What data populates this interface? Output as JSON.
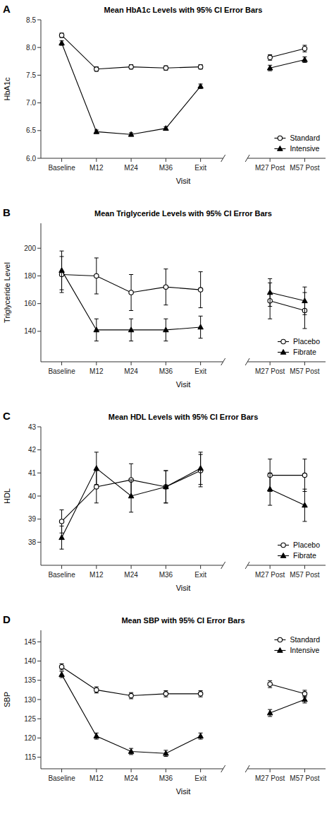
{
  "chart_data": [
    {
      "type": "line",
      "panel_label": "A",
      "title": "Mean HbA1c Levels with 95% CI Error Bars",
      "xlabel": "Visit",
      "ylabel": "HbA1c",
      "categories": [
        "Baseline",
        "M12",
        "M24",
        "M36",
        "Exit",
        null,
        "M27 Post",
        "M57 Post"
      ],
      "ylim": [
        6.0,
        8.5
      ],
      "yticks": [
        {
          "value": 6.0,
          "label": "6.0"
        },
        6.5,
        {
          "value": 7.0,
          "label": "7.0"
        },
        7.5,
        {
          "value": 8.0,
          "label": "8.0"
        },
        8.5
      ],
      "grid": false,
      "legend": "lower right",
      "series": [
        {
          "name": "Standard",
          "color": "#000000",
          "marker": "circle",
          "values": [
            8.22,
            7.61,
            7.65,
            7.63,
            7.65,
            null,
            7.82,
            7.98
          ],
          "errors": [
            0.04,
            0.04,
            0.04,
            0.04,
            0.04,
            null,
            0.05,
            0.06
          ]
        },
        {
          "name": "Intensive",
          "color": "#000000",
          "marker": "triangle",
          "values": [
            8.08,
            6.48,
            6.43,
            6.54,
            7.3,
            null,
            7.63,
            7.78
          ],
          "errors": [
            0.04,
            0.03,
            0.03,
            0.03,
            0.04,
            null,
            0.05,
            0.05
          ]
        }
      ]
    },
    {
      "type": "line",
      "panel_label": "B",
      "title": "Mean Triglyceride Levels with 95% CI Error Bars",
      "xlabel": "Visit",
      "ylabel": "Triglyceride Level",
      "categories": [
        "Baseline",
        "M12",
        "M24",
        "M36",
        "Exit",
        null,
        "M27 Post",
        "M57 Post"
      ],
      "ylim": [
        118,
        218
      ],
      "yticks": [
        140,
        160,
        180,
        200
      ],
      "grid": false,
      "legend": "lower right",
      "series": [
        {
          "name": "Placebo",
          "color": "#000000",
          "marker": "circle",
          "values": [
            181,
            180,
            168,
            172,
            170,
            null,
            162,
            155
          ],
          "errors": [
            13,
            13,
            13,
            13,
            13,
            null,
            13,
            13
          ]
        },
        {
          "name": "Fibrate",
          "color": "#000000",
          "marker": "triangle",
          "values": [
            184,
            141,
            141,
            141,
            143,
            null,
            168,
            162
          ],
          "errors": [
            14,
            8,
            8,
            8,
            8,
            null,
            10,
            10
          ]
        }
      ]
    },
    {
      "type": "line",
      "panel_label": "C",
      "title": "Mean HDL Levels with 95% CI Error Bars",
      "xlabel": "Visit",
      "ylabel": "HDL",
      "categories": [
        "Baseline",
        "M12",
        "M24",
        "M36",
        "Exit",
        null,
        "M27 Post",
        "M57 Post"
      ],
      "ylim": [
        37.0,
        43.0
      ],
      "yticks": [
        38,
        39,
        40,
        41,
        42,
        43
      ],
      "grid": false,
      "legend": "lower right",
      "series": [
        {
          "name": "Placebo",
          "color": "#000000",
          "marker": "circle",
          "values": [
            38.9,
            40.4,
            40.7,
            40.4,
            41.1,
            null,
            40.9,
            40.9
          ],
          "errors": [
            0.5,
            0.7,
            0.7,
            0.7,
            0.7,
            null,
            0.7,
            0.7
          ]
        },
        {
          "name": "Fibrate",
          "color": "#000000",
          "marker": "triangle",
          "values": [
            38.2,
            41.2,
            40.0,
            40.4,
            41.2,
            null,
            40.3,
            39.6
          ],
          "errors": [
            0.5,
            0.7,
            0.7,
            0.7,
            0.7,
            null,
            0.7,
            0.7
          ]
        }
      ]
    },
    {
      "type": "line",
      "panel_label": "D",
      "title": "Mean SBP with 95% CI Error Bars",
      "xlabel": "Visit",
      "ylabel": "SBP",
      "categories": [
        "Baseline",
        "M12",
        "M24",
        "M36",
        "Exit",
        null,
        "M27 Post",
        "M57 Post"
      ],
      "ylim": [
        112,
        148
      ],
      "yticks": [
        115,
        120,
        125,
        130,
        135,
        140,
        145
      ],
      "grid": false,
      "legend": "upper right",
      "series": [
        {
          "name": "Standard",
          "color": "#000000",
          "marker": "circle",
          "values": [
            138.5,
            132.5,
            131.0,
            131.5,
            131.5,
            null,
            134.0,
            131.5
          ],
          "errors": [
            0.8,
            0.8,
            0.8,
            0.8,
            0.8,
            null,
            0.9,
            0.9
          ]
        },
        {
          "name": "Intensive",
          "color": "#000000",
          "marker": "triangle",
          "values": [
            136.5,
            120.5,
            116.5,
            116.0,
            120.5,
            null,
            126.5,
            130.0
          ],
          "errors": [
            0.8,
            0.8,
            0.8,
            0.8,
            0.8,
            null,
            0.9,
            0.9
          ]
        }
      ]
    }
  ]
}
